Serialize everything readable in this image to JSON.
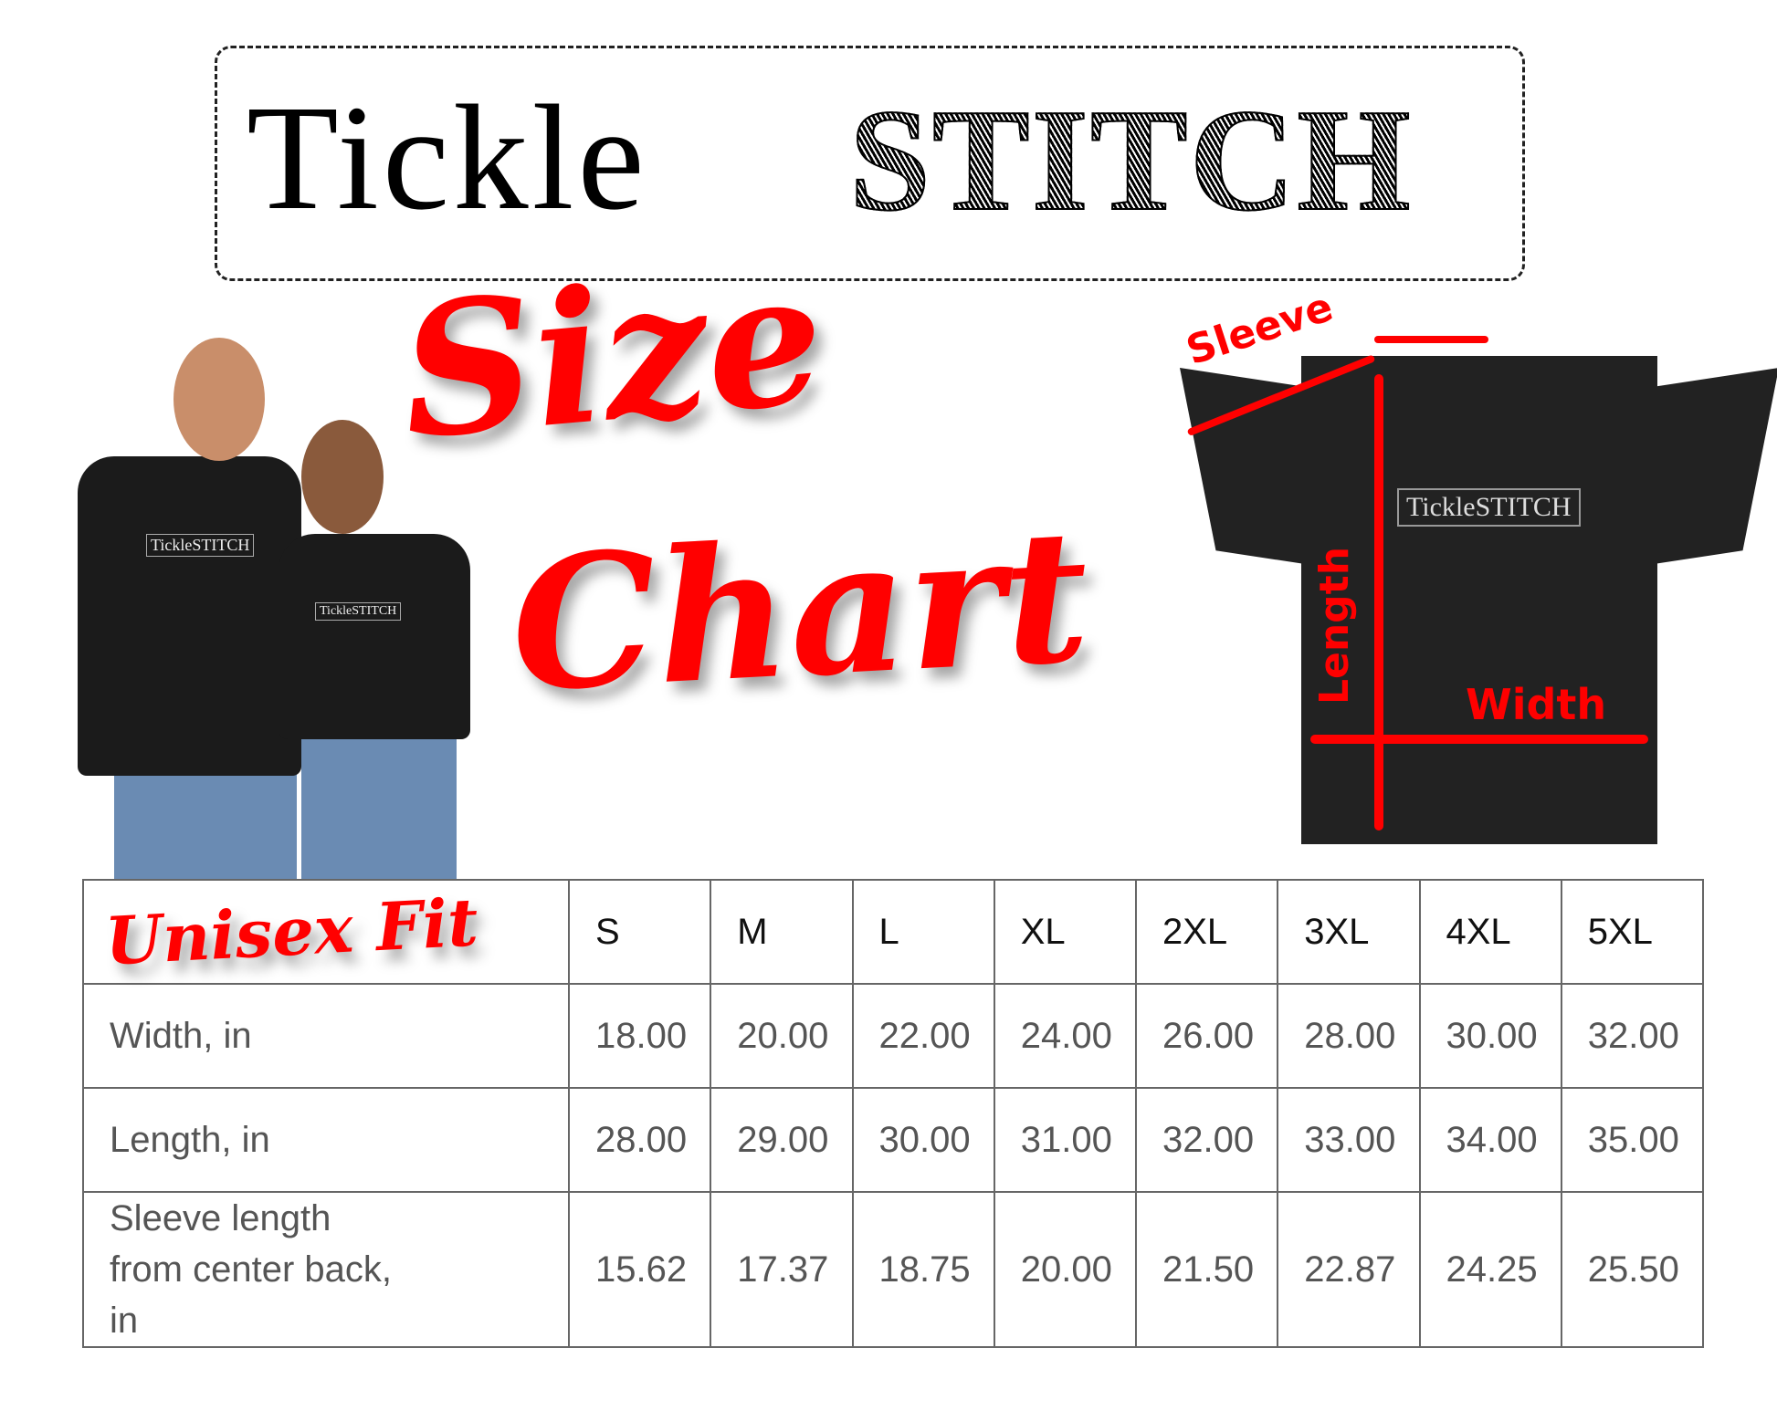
{
  "brand": {
    "part1": "Tickle",
    "part2": "STITCH"
  },
  "heading": {
    "word1": "Size",
    "word2": "Chart"
  },
  "fit_label": "Unisex Fit",
  "shirt_logo_text": "TickleSTITCH",
  "diagram": {
    "sleeve": "Sleeve",
    "length": "Length",
    "width": "Width"
  },
  "colors": {
    "accent": "#ff0000",
    "shirt": "#222222"
  },
  "table": {
    "sizes": [
      "S",
      "M",
      "L",
      "XL",
      "2XL",
      "3XL",
      "4XL",
      "5XL"
    ],
    "rows": [
      {
        "label": "Width, in",
        "values": [
          "18.00",
          "20.00",
          "22.00",
          "24.00",
          "26.00",
          "28.00",
          "30.00",
          "32.00"
        ]
      },
      {
        "label": "Length, in",
        "values": [
          "28.00",
          "29.00",
          "30.00",
          "31.00",
          "32.00",
          "33.00",
          "34.00",
          "35.00"
        ]
      },
      {
        "label": "Sleeve length from center back, in",
        "values": [
          "15.62",
          "17.37",
          "18.75",
          "20.00",
          "21.50",
          "22.87",
          "24.25",
          "25.50"
        ]
      }
    ]
  }
}
